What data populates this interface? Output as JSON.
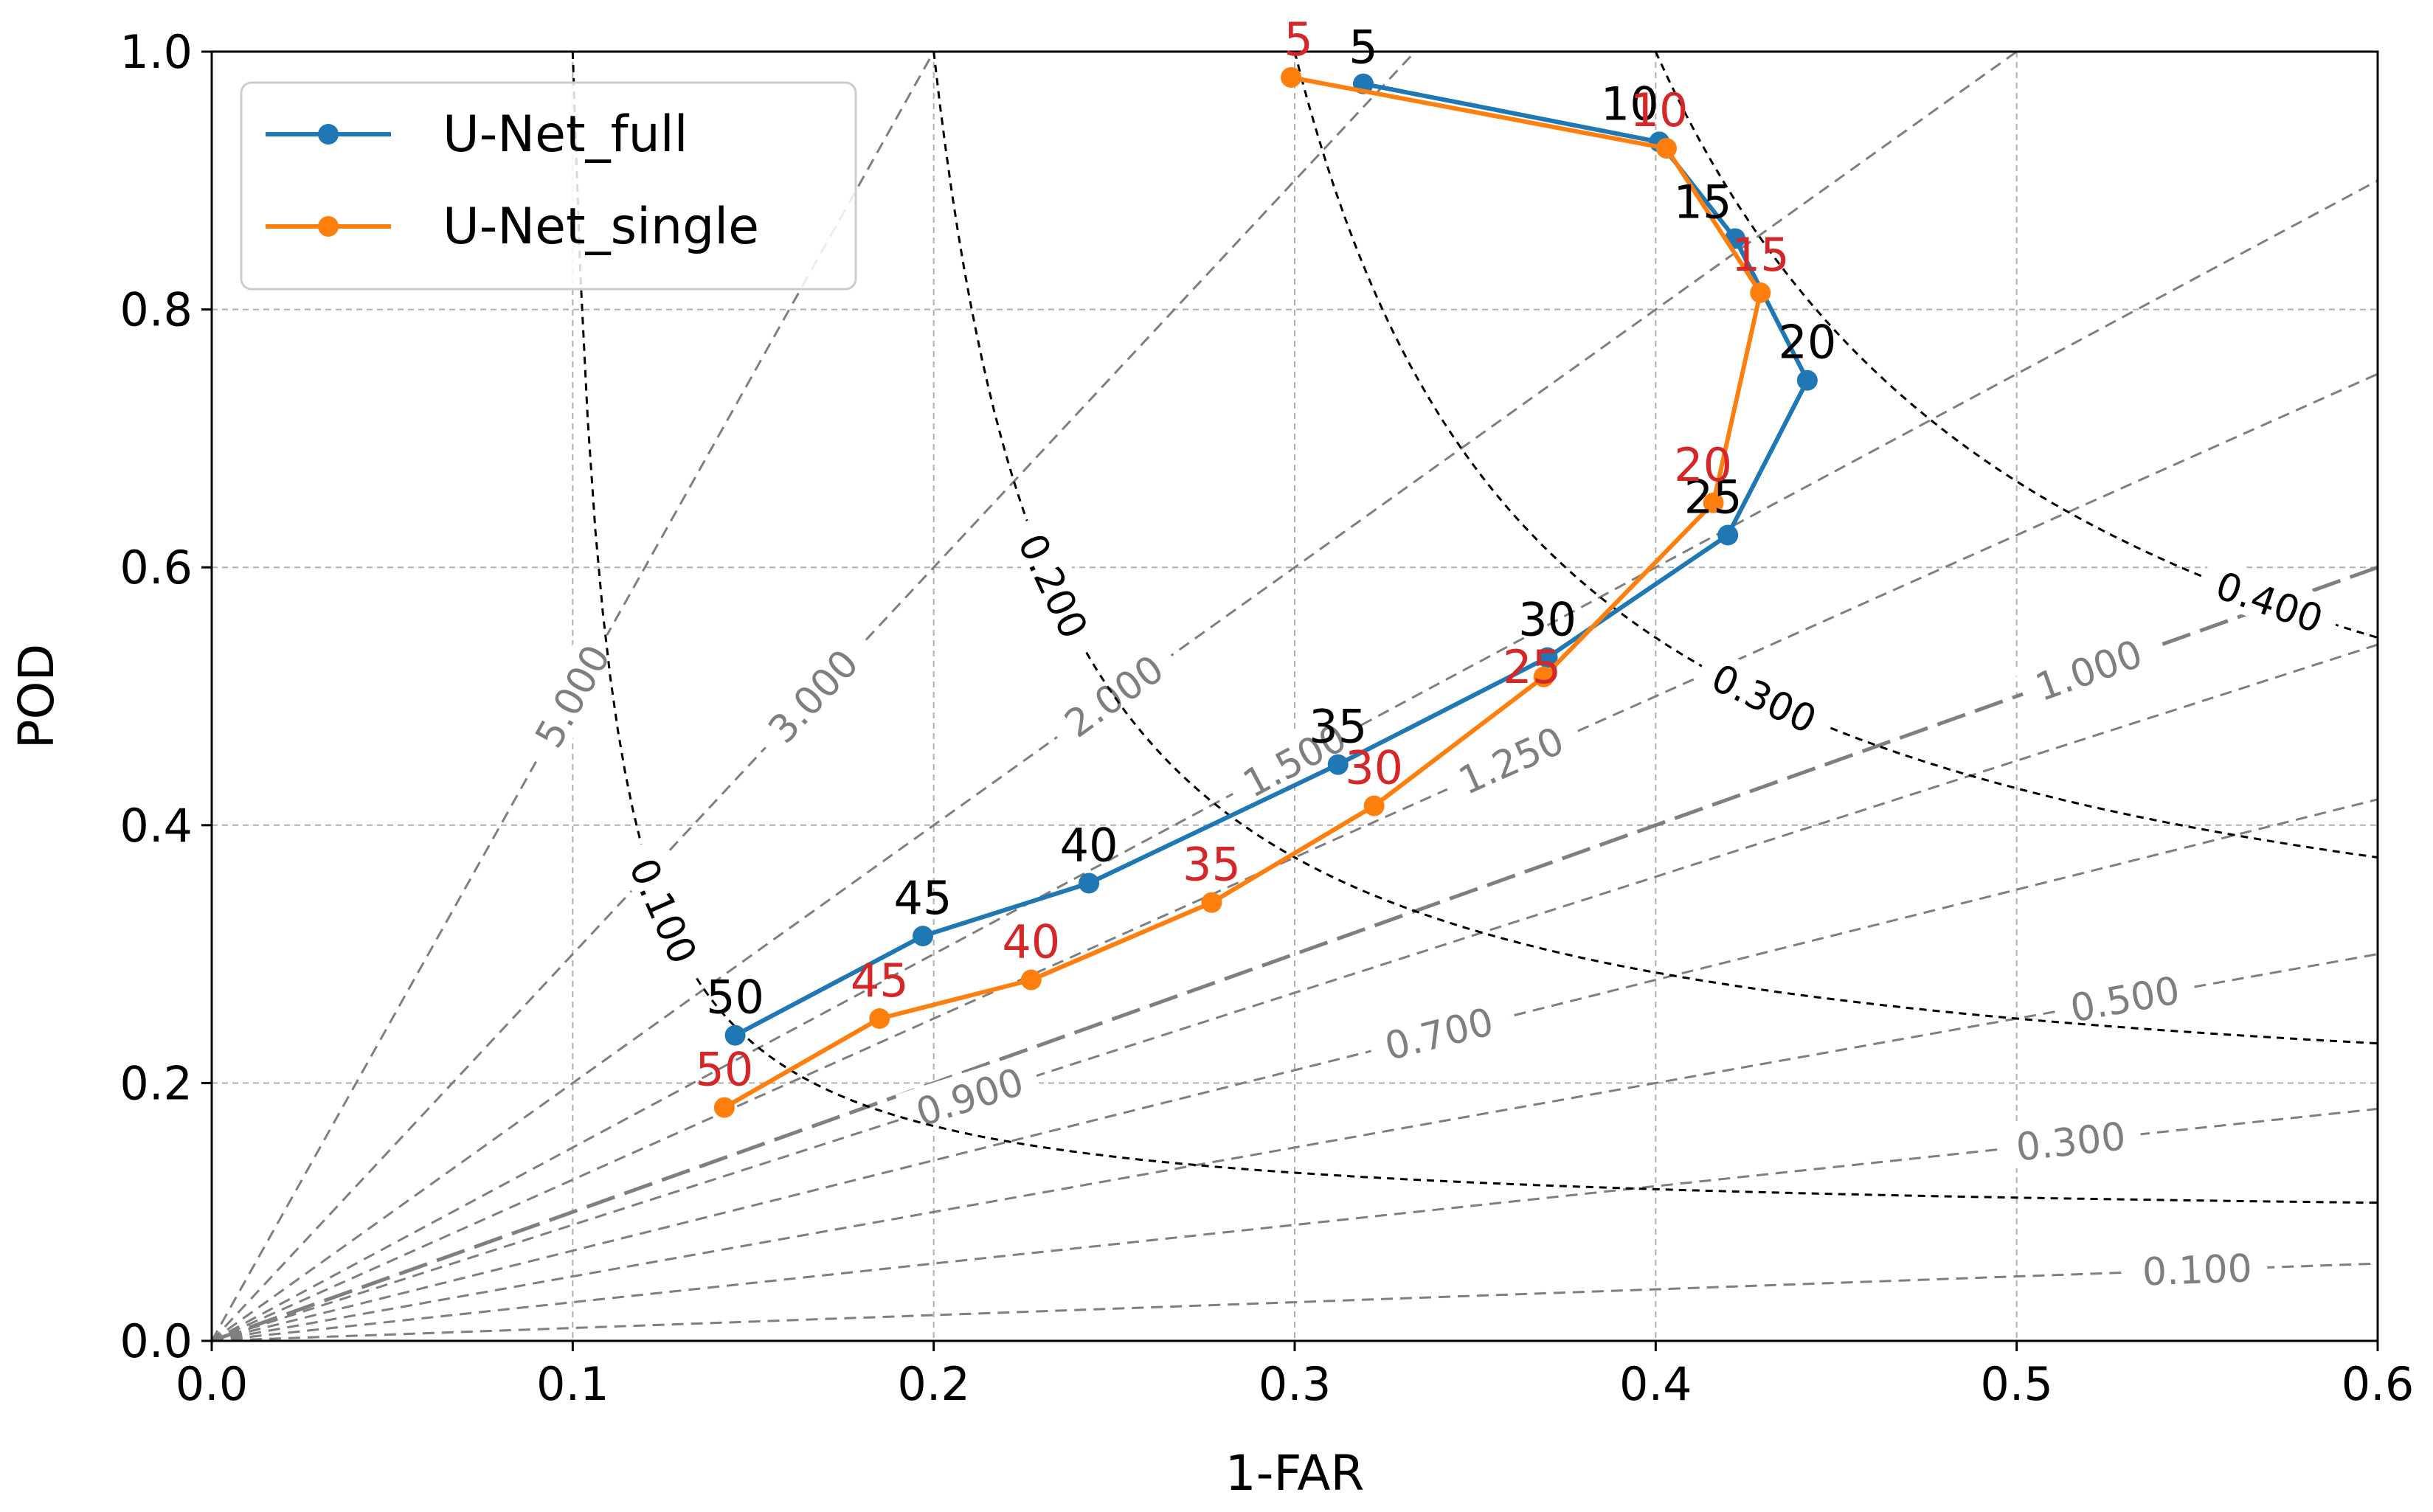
{
  "chart_data": {
    "type": "line",
    "title": "",
    "xlabel": "1-FAR",
    "ylabel": "POD",
    "xlim": [
      0.0,
      0.6
    ],
    "ylim": [
      0.0,
      1.0
    ],
    "xticks": [
      "0.0",
      "0.1",
      "0.2",
      "0.3",
      "0.4",
      "0.5",
      "0.6"
    ],
    "yticks": [
      "0.0",
      "0.2",
      "0.4",
      "0.6",
      "0.8",
      "1.0"
    ],
    "grid": true,
    "legend_position": "top-left",
    "series": [
      {
        "name": "U-Net_full",
        "color": "#1f77b4",
        "label_color": "#000000",
        "x": [
          0.319,
          0.401,
          0.422,
          0.442,
          0.42,
          0.37,
          0.312,
          0.243,
          0.197,
          0.145
        ],
        "y": [
          0.975,
          0.93,
          0.855,
          0.745,
          0.625,
          0.53,
          0.447,
          0.355,
          0.314,
          0.237
        ],
        "labels": [
          "5",
          "10",
          "15",
          "20",
          "25",
          "30",
          "35",
          "40",
          "45",
          "50"
        ]
      },
      {
        "name": "U-Net_single",
        "color": "#ff7f0e",
        "label_color": "#d62728",
        "x": [
          0.299,
          0.403,
          0.429,
          0.416,
          0.369,
          0.322,
          0.277,
          0.227,
          0.185,
          0.142
        ],
        "y": [
          0.98,
          0.925,
          0.813,
          0.65,
          0.515,
          0.415,
          0.34,
          0.28,
          0.25,
          0.181
        ],
        "labels": [
          "5",
          "10",
          "15",
          "20",
          "25",
          "30",
          "35",
          "40",
          "45",
          "50"
        ]
      }
    ],
    "bias_lines": {
      "color": "#7f7f7f",
      "values": [
        5.0,
        3.0,
        2.0,
        1.5,
        1.25,
        1.0,
        0.9,
        0.7,
        0.5,
        0.3,
        0.1
      ],
      "labels": [
        "5.000",
        "3.000",
        "2.000",
        "1.500",
        "1.250",
        "1.000",
        "0.900",
        "0.700",
        "0.500",
        "0.300",
        "0.100"
      ]
    },
    "csi_lines": {
      "color": "#000000",
      "values": [
        0.1,
        0.2,
        0.3,
        0.4
      ],
      "labels": [
        "0.100",
        "0.200",
        "0.300",
        "0.400"
      ]
    }
  }
}
